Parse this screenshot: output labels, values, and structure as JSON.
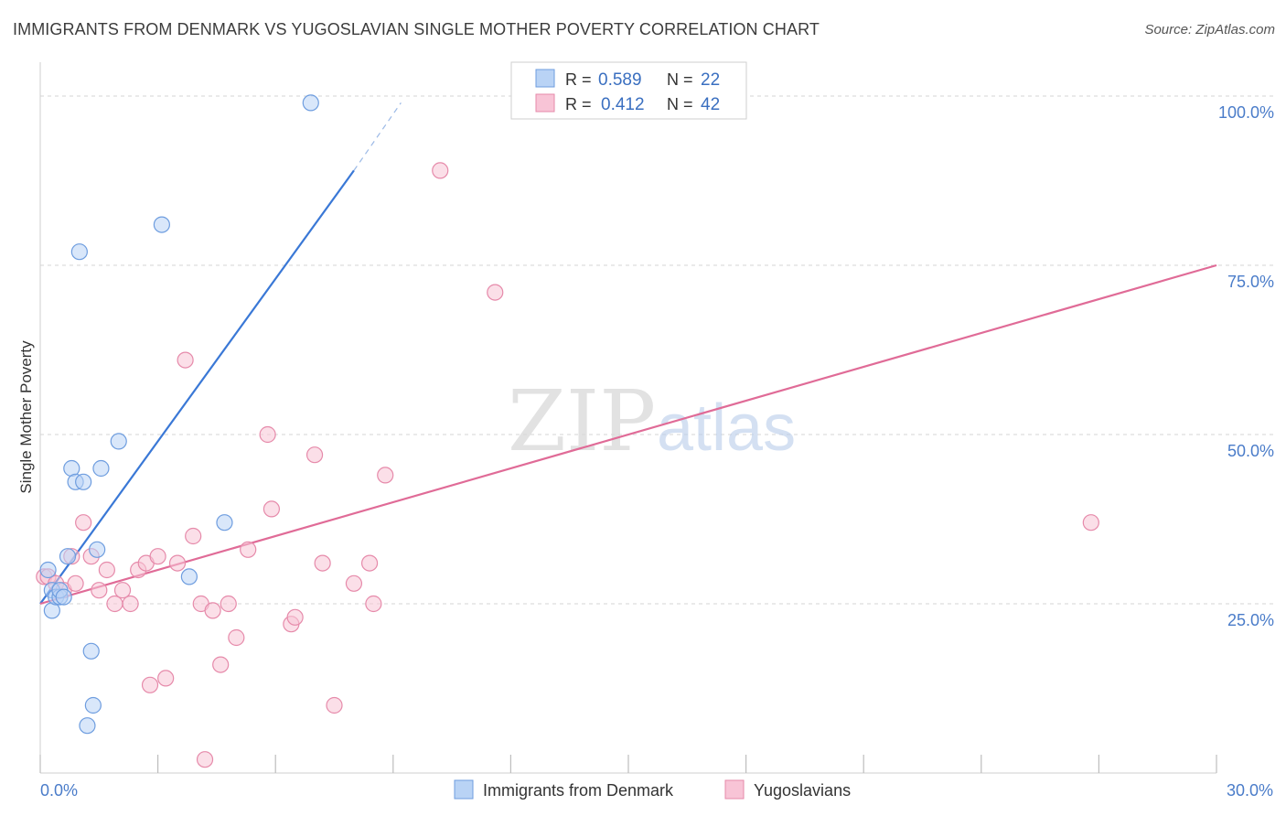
{
  "header": {
    "title": "IMMIGRANTS FROM DENMARK VS YUGOSLAVIAN SINGLE MOTHER POVERTY CORRELATION CHART",
    "source": "Source: ZipAtlas.com"
  },
  "colors": {
    "blue": "#3a78d6",
    "blue_fill": "#b9d3f5",
    "pink": "#e06b97",
    "pink_fill": "#f8c4d6",
    "tick_text": "#4a7cc9",
    "grid": "#d6d6d6"
  },
  "legend": {
    "r_label": "R =",
    "n_label": "N =",
    "rows": [
      {
        "r": "0.589",
        "n": "22"
      },
      {
        "r": "0.412",
        "n": "42"
      }
    ]
  },
  "watermark": {
    "zip": "ZIP",
    "atlas": "atlas"
  },
  "chart_data": {
    "type": "scatter",
    "title": "IMMIGRANTS FROM DENMARK VS YUGOSLAVIAN SINGLE MOTHER POVERTY CORRELATION CHART",
    "xlabel": "",
    "ylabel": "Single Mother Poverty",
    "xlim": [
      0,
      30
    ],
    "ylim": [
      0,
      105
    ],
    "x_tick_labels": [
      "0.0%",
      "30.0%"
    ],
    "y_ticks": [
      25,
      50,
      75,
      100
    ],
    "y_tick_labels": [
      "25.0%",
      "50.0%",
      "75.0%",
      "100.0%"
    ],
    "grid": true,
    "legend_position": "top-center",
    "series": [
      {
        "name": "Immigrants from Denmark",
        "color": "#3a78d6",
        "r": 0.589,
        "n": 22,
        "points": [
          [
            0.2,
            30
          ],
          [
            0.3,
            27
          ],
          [
            0.3,
            24
          ],
          [
            0.4,
            26
          ],
          [
            0.5,
            26
          ],
          [
            0.5,
            27
          ],
          [
            0.6,
            26
          ],
          [
            0.7,
            32
          ],
          [
            0.8,
            45
          ],
          [
            0.9,
            43
          ],
          [
            1.0,
            77
          ],
          [
            1.1,
            43
          ],
          [
            1.2,
            7
          ],
          [
            1.3,
            18
          ],
          [
            1.35,
            10
          ],
          [
            1.45,
            33
          ],
          [
            1.55,
            45
          ],
          [
            2.0,
            49
          ],
          [
            3.1,
            81
          ],
          [
            3.8,
            29
          ],
          [
            4.7,
            37
          ],
          [
            6.9,
            99
          ]
        ],
        "trend": {
          "x": [
            0,
            8.0
          ],
          "y": [
            25,
            89
          ],
          "dashed_to": {
            "x": [
              8.0,
              9.2
            ],
            "y": [
              89,
              99
            ]
          }
        }
      },
      {
        "name": "Yugoslavians",
        "color": "#e06b97",
        "r": 0.412,
        "n": 42,
        "points": [
          [
            0.1,
            29
          ],
          [
            0.2,
            29
          ],
          [
            0.4,
            28
          ],
          [
            0.6,
            27
          ],
          [
            0.8,
            32
          ],
          [
            0.9,
            28
          ],
          [
            1.1,
            37
          ],
          [
            1.3,
            32
          ],
          [
            1.5,
            27
          ],
          [
            1.7,
            30
          ],
          [
            1.9,
            25
          ],
          [
            2.1,
            27
          ],
          [
            2.3,
            25
          ],
          [
            2.5,
            30
          ],
          [
            2.7,
            31
          ],
          [
            2.8,
            13
          ],
          [
            3.0,
            32
          ],
          [
            3.2,
            14
          ],
          [
            3.5,
            31
          ],
          [
            3.7,
            61
          ],
          [
            3.9,
            35
          ],
          [
            4.1,
            25
          ],
          [
            4.2,
            2
          ],
          [
            4.4,
            24
          ],
          [
            4.6,
            16
          ],
          [
            4.8,
            25
          ],
          [
            5.0,
            20
          ],
          [
            5.3,
            33
          ],
          [
            5.8,
            50
          ],
          [
            5.9,
            39
          ],
          [
            6.4,
            22
          ],
          [
            6.5,
            23
          ],
          [
            7.0,
            47
          ],
          [
            7.2,
            31
          ],
          [
            7.5,
            10
          ],
          [
            8.0,
            28
          ],
          [
            8.4,
            31
          ],
          [
            8.5,
            25
          ],
          [
            8.8,
            44
          ],
          [
            10.2,
            89
          ],
          [
            11.6,
            71
          ],
          [
            26.8,
            37
          ]
        ],
        "trend": {
          "x": [
            0,
            30
          ],
          "y": [
            25,
            75
          ]
        }
      }
    ]
  },
  "bottom_legend": [
    {
      "label": "Immigrants from Denmark"
    },
    {
      "label": "Yugoslavians"
    }
  ]
}
